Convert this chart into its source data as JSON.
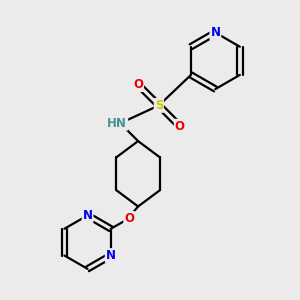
{
  "background_color": "#ebebeb",
  "atom_colors": {
    "C": "#000000",
    "N": "#0000ee",
    "O": "#ee0000",
    "S": "#cccc00",
    "H": "#4a9090"
  },
  "bond_color": "#000000",
  "bond_width": 1.6,
  "figsize": [
    3.0,
    3.0
  ],
  "dpi": 100
}
